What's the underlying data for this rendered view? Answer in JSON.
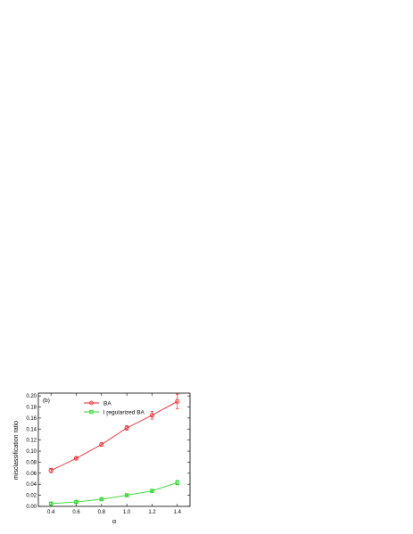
{
  "chart_data": {
    "type": "line",
    "panel_label": "(b)",
    "xlabel": "α",
    "ylabel": "misclassification ratio",
    "xlim": [
      0.3,
      1.5
    ],
    "ylim": [
      0.0,
      0.205
    ],
    "xticks": [
      0.4,
      0.6,
      0.8,
      1.0,
      1.2,
      1.4
    ],
    "xtick_labels": [
      "0.4",
      "0.6",
      "0.8",
      "1.0",
      "1.2",
      "1.4"
    ],
    "yticks": [
      0.0,
      0.02,
      0.04,
      0.06,
      0.08,
      0.1,
      0.12,
      0.14,
      0.16,
      0.18,
      0.2
    ],
    "ytick_labels": [
      "0.00",
      "0.02",
      "0.04",
      "0.06",
      "0.08",
      "0.10",
      "0.12",
      "0.14",
      "0.16",
      "0.18",
      "0.20"
    ],
    "legend_position": "top-center",
    "grid": false,
    "series": [
      {
        "name": "BA",
        "color": "#e8262a",
        "marker": "circle",
        "x": [
          0.4,
          0.6,
          0.8,
          1.0,
          1.2,
          1.4
        ],
        "y": [
          0.065,
          0.087,
          0.112,
          0.142,
          0.165,
          0.19
        ],
        "err": [
          0.004,
          0.003,
          0.003,
          0.004,
          0.007,
          0.013
        ]
      },
      {
        "name": "l  regularized BA",
        "legend_subscript": "1",
        "color": "#2dd62d",
        "marker": "square",
        "x": [
          0.4,
          0.6,
          0.8,
          1.0,
          1.2,
          1.4
        ],
        "y": [
          0.005,
          0.008,
          0.013,
          0.02,
          0.028,
          0.043
        ],
        "err": [
          0.002,
          0.002,
          0.002,
          0.002,
          0.002,
          0.004
        ]
      }
    ]
  }
}
